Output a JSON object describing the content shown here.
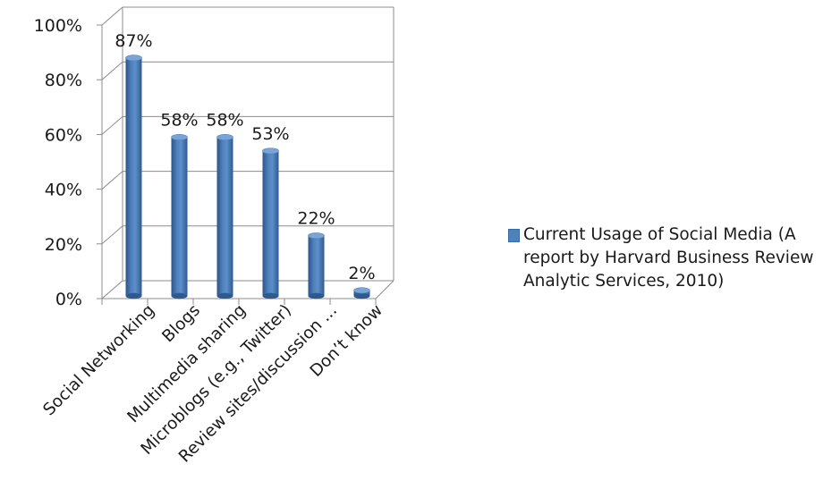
{
  "chart_data": {
    "type": "bar",
    "categories": [
      "Social Networking",
      "Blogs",
      "Multimedia sharing",
      "Microblogs (e.g., Twitter)",
      "Review sites/discussion ...",
      "Don’t know"
    ],
    "series": [
      {
        "name": "Current Usage of Social Media (A report by Harvard Business Review Analytic Services, 2010)",
        "values": [
          87,
          58,
          58,
          53,
          22,
          2
        ],
        "data_labels": [
          "87%",
          "58%",
          "58%",
          "53%",
          "22%",
          "2%"
        ],
        "color": "#4f81bd"
      }
    ],
    "yticks": [
      "0%",
      "20%",
      "40%",
      "60%",
      "80%",
      "100%"
    ],
    "ylim": [
      0,
      100
    ],
    "grid": true,
    "legend_position": "right",
    "style": "3d-cylinder"
  }
}
